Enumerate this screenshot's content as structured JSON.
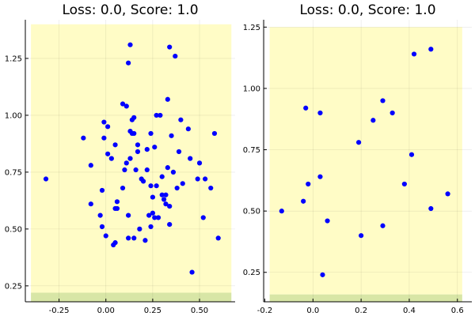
{
  "chart_data": [
    {
      "type": "scatter",
      "title": "Loss: 0.0, Score: 1.0",
      "xlabel": "",
      "ylabel": "",
      "xlim": [
        -0.43,
        0.69
      ],
      "ylim": [
        0.18,
        1.42
      ],
      "xticks": [
        -0.25,
        0.0,
        0.25,
        0.5
      ],
      "xtick_labels": [
        "-0.25",
        "0.00",
        "0.25",
        "0.50"
      ],
      "yticks": [
        0.25,
        0.5,
        0.75,
        1.0,
        1.25
      ],
      "ytick_labels": [
        "0.25",
        "0.50",
        "0.75",
        "1.00",
        "1.25"
      ],
      "grid": true,
      "legend": false,
      "regions": [
        {
          "x": [
            -0.4,
            0.67
          ],
          "y": [
            0.22,
            1.4
          ],
          "color": "#fffcc6"
        },
        {
          "x": [
            -0.4,
            0.67
          ],
          "y": [
            0.18,
            0.22
          ],
          "color": "#d8e6a6"
        }
      ],
      "series": [
        {
          "color": "#0000ff",
          "points": [
            [
              -0.32,
              0.72
            ],
            [
              -0.12,
              0.9
            ],
            [
              -0.08,
              0.78
            ],
            [
              -0.08,
              0.61
            ],
            [
              -0.03,
              0.56
            ],
            [
              -0.02,
              0.51
            ],
            [
              -0.02,
              0.67
            ],
            [
              -0.01,
              0.97
            ],
            [
              -0.01,
              0.9
            ],
            [
              0.0,
              0.47
            ],
            [
              0.01,
              0.83
            ],
            [
              0.01,
              0.95
            ],
            [
              0.03,
              0.81
            ],
            [
              0.04,
              0.43
            ],
            [
              0.05,
              0.44
            ],
            [
              0.05,
              0.87
            ],
            [
              0.05,
              0.59
            ],
            [
              0.06,
              0.62
            ],
            [
              0.06,
              0.59
            ],
            [
              0.09,
              0.68
            ],
            [
              0.09,
              1.05
            ],
            [
              0.1,
              0.76
            ],
            [
              0.11,
              0.79
            ],
            [
              0.11,
              1.04
            ],
            [
              0.12,
              0.56
            ],
            [
              0.12,
              1.23
            ],
            [
              0.12,
              0.46
            ],
            [
              0.13,
              0.81
            ],
            [
              0.13,
              1.31
            ],
            [
              0.13,
              0.93
            ],
            [
              0.14,
              0.98
            ],
            [
              0.14,
              0.92
            ],
            [
              0.15,
              0.99
            ],
            [
              0.15,
              0.46
            ],
            [
              0.15,
              0.92
            ],
            [
              0.16,
              0.76
            ],
            [
              0.17,
              0.87
            ],
            [
              0.17,
              0.84
            ],
            [
              0.18,
              0.5
            ],
            [
              0.19,
              0.72
            ],
            [
              0.2,
              0.71
            ],
            [
              0.21,
              0.45
            ],
            [
              0.22,
              0.85
            ],
            [
              0.22,
              0.76
            ],
            [
              0.23,
              0.56
            ],
            [
              0.24,
              0.92
            ],
            [
              0.24,
              0.51
            ],
            [
              0.24,
              0.69
            ],
            [
              0.25,
              0.64
            ],
            [
              0.25,
              0.57
            ],
            [
              0.26,
              0.55
            ],
            [
              0.26,
              0.86
            ],
            [
              0.27,
              0.69
            ],
            [
              0.27,
              1.0
            ],
            [
              0.28,
              0.55
            ],
            [
              0.29,
              1.0
            ],
            [
              0.3,
              0.65
            ],
            [
              0.3,
              0.73
            ],
            [
              0.31,
              0.63
            ],
            [
              0.32,
              0.61
            ],
            [
              0.32,
              0.65
            ],
            [
              0.33,
              1.07
            ],
            [
              0.33,
              0.77
            ],
            [
              0.34,
              0.6
            ],
            [
              0.34,
              0.52
            ],
            [
              0.34,
              1.3
            ],
            [
              0.35,
              0.91
            ],
            [
              0.36,
              0.75
            ],
            [
              0.37,
              1.26
            ],
            [
              0.38,
              0.68
            ],
            [
              0.39,
              0.84
            ],
            [
              0.4,
              0.98
            ],
            [
              0.41,
              0.7
            ],
            [
              0.44,
              0.94
            ],
            [
              0.45,
              0.81
            ],
            [
              0.46,
              0.31
            ],
            [
              0.49,
              0.72
            ],
            [
              0.5,
              0.79
            ],
            [
              0.52,
              0.55
            ],
            [
              0.53,
              0.72
            ],
            [
              0.56,
              0.68
            ],
            [
              0.58,
              0.92
            ],
            [
              0.6,
              0.46
            ]
          ]
        }
      ]
    },
    {
      "type": "scatter",
      "title": "Loss: 0.0, Score: 1.0",
      "xlabel": "",
      "ylabel": "",
      "xlim": [
        -0.205,
        0.66
      ],
      "ylim": [
        0.13,
        1.28
      ],
      "xticks": [
        -0.2,
        0.0,
        0.2,
        0.4,
        0.6
      ],
      "xtick_labels": [
        "-0.2",
        "0.0",
        "0.2",
        "0.4",
        "0.6"
      ],
      "yticks": [
        0.25,
        0.5,
        0.75,
        1.0,
        1.25
      ],
      "ytick_labels": [
        "0.25",
        "0.50",
        "0.75",
        "1.00",
        "1.25"
      ],
      "grid": true,
      "legend": false,
      "regions": [
        {
          "x": [
            -0.18,
            0.62
          ],
          "y": [
            0.16,
            1.25
          ],
          "color": "#fffcc6"
        },
        {
          "x": [
            -0.18,
            0.62
          ],
          "y": [
            0.13,
            0.16
          ],
          "color": "#d8e6a6"
        }
      ],
      "series": [
        {
          "color": "#0000ff",
          "points": [
            [
              -0.13,
              0.5
            ],
            [
              -0.04,
              0.54
            ],
            [
              -0.03,
              0.92
            ],
            [
              -0.02,
              0.61
            ],
            [
              0.03,
              0.9
            ],
            [
              0.03,
              0.64
            ],
            [
              0.04,
              0.24
            ],
            [
              0.06,
              0.46
            ],
            [
              0.19,
              0.78
            ],
            [
              0.2,
              0.4
            ],
            [
              0.25,
              0.87
            ],
            [
              0.29,
              0.95
            ],
            [
              0.29,
              0.44
            ],
            [
              0.33,
              0.9
            ],
            [
              0.38,
              0.61
            ],
            [
              0.41,
              0.73
            ],
            [
              0.42,
              1.14
            ],
            [
              0.49,
              1.16
            ],
            [
              0.49,
              0.51
            ],
            [
              0.56,
              0.57
            ]
          ]
        }
      ]
    }
  ]
}
